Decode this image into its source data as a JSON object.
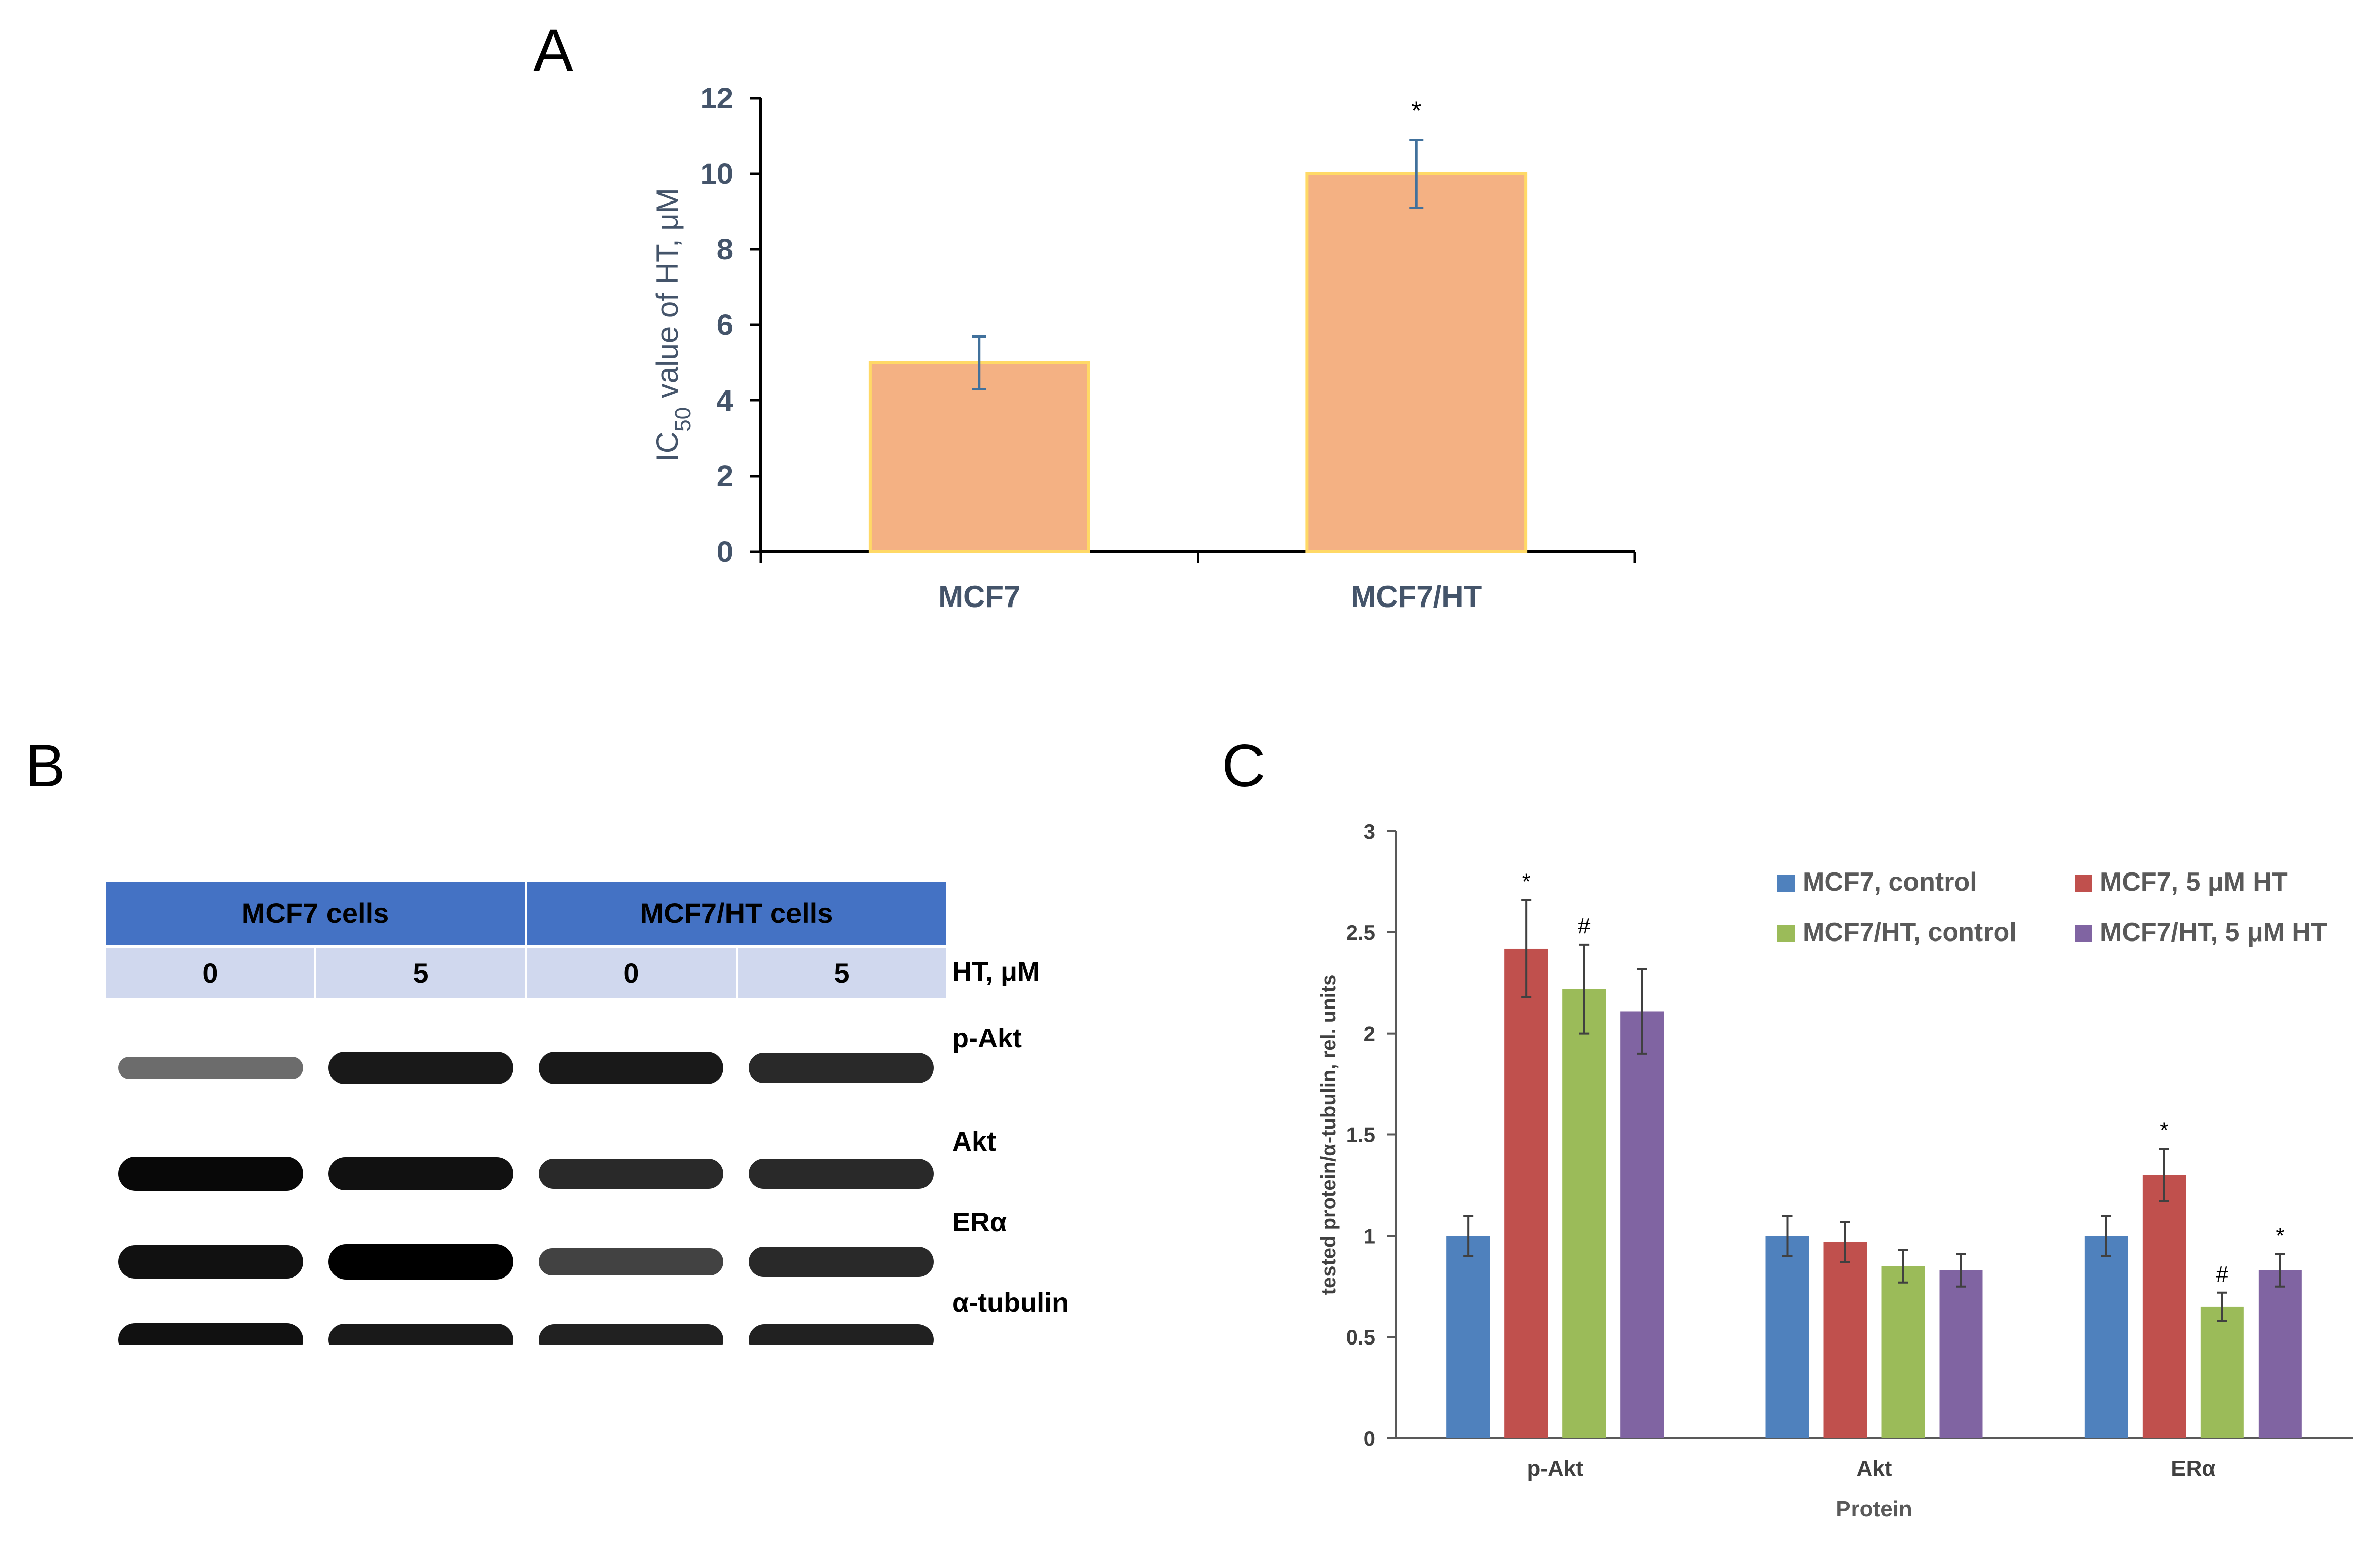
{
  "panels": {
    "A": "A",
    "B": "B",
    "C": "C"
  },
  "chart_data": [
    {
      "panel": "A",
      "type": "bar",
      "categories": [
        "MCF7",
        "MCF7/HT"
      ],
      "values": [
        5.0,
        10.0
      ],
      "errors": [
        0.7,
        0.9
      ],
      "significance": [
        "",
        "*"
      ],
      "ylabel_main": "IC",
      "ylabel_sub": "50",
      "ylabel_rest": " value of HT, μM",
      "ylim": [
        0,
        12
      ],
      "yticks": [
        0,
        2,
        4,
        6,
        8,
        10,
        12
      ],
      "grid": false,
      "bar_color": "#F4B183",
      "bar_edge": "#FFD966",
      "axis_text_color": "#44546A"
    },
    {
      "panel": "C",
      "type": "bar",
      "categories": [
        "p-Akt",
        "Akt",
        "ERα"
      ],
      "xlabel": "Protein",
      "ylabel": "tested protein/α-tubulin, rel. units",
      "ylim": [
        0,
        3
      ],
      "yticks": [
        "0",
        "0.5",
        "1",
        "1.5",
        "2",
        "2.5",
        "3"
      ],
      "grid": false,
      "legend_position": "top-right",
      "series": [
        {
          "name": "MCF7, control",
          "color": "#4F81BD",
          "values": [
            1.0,
            1.0,
            1.0
          ],
          "errors": [
            0.1,
            0.1,
            0.1
          ],
          "marks": [
            "",
            "",
            ""
          ]
        },
        {
          "name": "MCF7, 5 μM HT",
          "color": "#C0504D",
          "values": [
            2.42,
            0.97,
            1.3
          ],
          "errors": [
            0.24,
            0.1,
            0.13
          ],
          "marks": [
            "*",
            "",
            "*"
          ]
        },
        {
          "name": "MCF7/HT, control",
          "color": "#9BBB59",
          "values": [
            2.22,
            0.85,
            0.65
          ],
          "errors": [
            0.22,
            0.08,
            0.07
          ],
          "marks": [
            "#",
            "",
            "#"
          ]
        },
        {
          "name": "MCF7/HT, 5 μM HT",
          "color": "#8064A2",
          "values": [
            2.11,
            0.83,
            0.83
          ],
          "errors": [
            0.21,
            0.08,
            0.08
          ],
          "marks": [
            "",
            "",
            "*"
          ]
        }
      ]
    }
  ],
  "blot": {
    "groups": [
      "MCF7 cells",
      "MCF7/HT cells"
    ],
    "doses": [
      "0",
      "5",
      "0",
      "5"
    ],
    "dose_unit": "HT, μM",
    "proteins": [
      "p-Akt",
      "Akt",
      "ERα",
      "α-tubulin"
    ],
    "band_intensity": [
      [
        0.35,
        0.85,
        0.85,
        0.75
      ],
      [
        0.95,
        0.9,
        0.75,
        0.75
      ],
      [
        0.9,
        1.0,
        0.6,
        0.75
      ],
      [
        0.9,
        0.85,
        0.8,
        0.8
      ]
    ]
  }
}
